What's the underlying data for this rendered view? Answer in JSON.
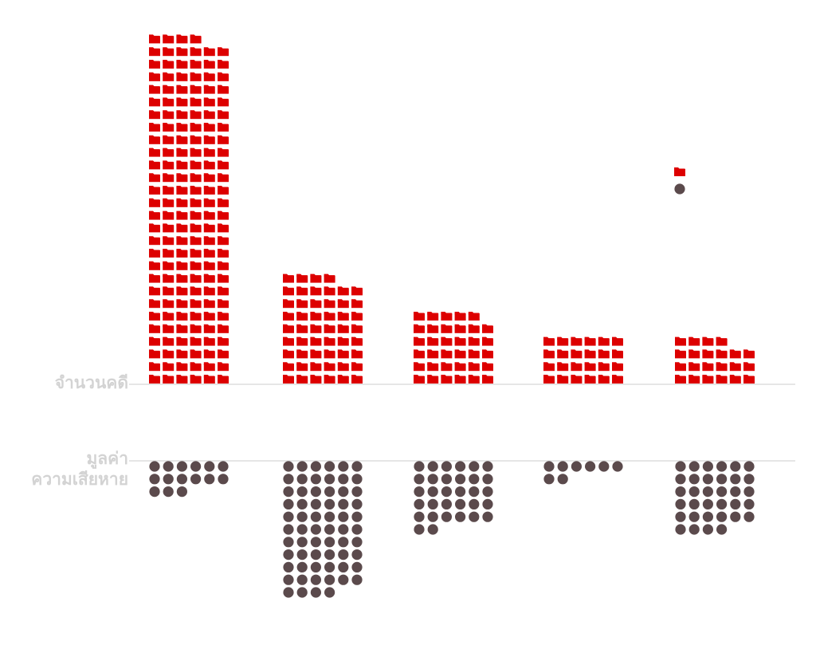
{
  "chart_data": {
    "type": "pictogram",
    "labels": {
      "cases": "จำนวนคดี",
      "damage_line1": "มูลค่า",
      "damage_line2": "ความเสียหาย"
    },
    "columns": 6,
    "series": [
      {
        "key": "cases",
        "icon": "folder-icon",
        "color": "#dd0000",
        "values": [
          166,
          52,
          35,
          24,
          22
        ]
      },
      {
        "key": "damage",
        "icon": "dot-icon",
        "color": "#5b4a4c",
        "values": [
          15,
          64,
          32,
          8,
          34
        ]
      }
    ],
    "legend_sample": {
      "icons": [
        "folder-icon",
        "dot-icon"
      ]
    }
  }
}
